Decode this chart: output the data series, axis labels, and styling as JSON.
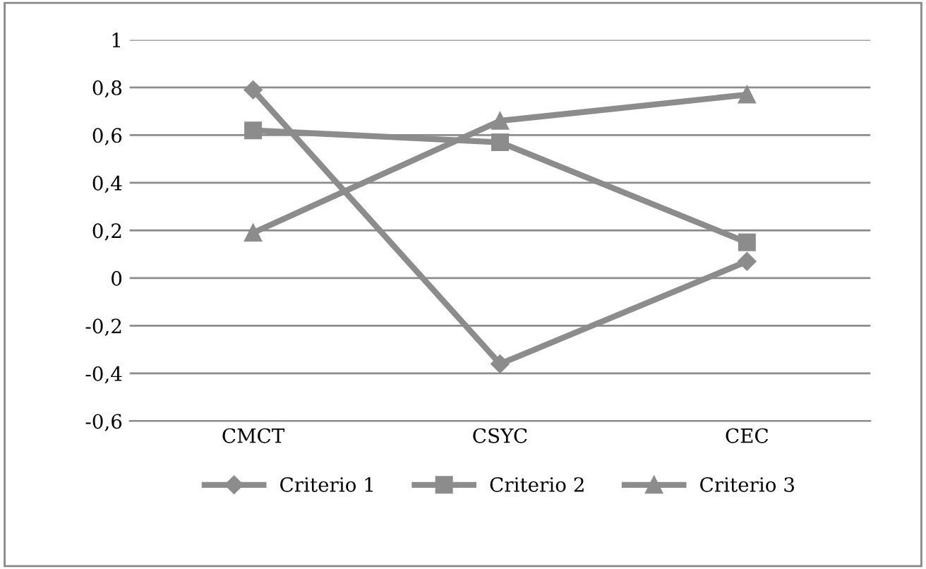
{
  "chart_data": {
    "type": "line",
    "categories": [
      "CMCT",
      "CSYC",
      "CEC"
    ],
    "series": [
      {
        "name": "Criterio 1",
        "color": "#8c8c8c",
        "marker": "diamond",
        "values": [
          0.79,
          -0.36,
          0.07
        ]
      },
      {
        "name": "Criterio 2",
        "color": "#8c8c8c",
        "marker": "square",
        "values": [
          0.62,
          0.57,
          0.15
        ]
      },
      {
        "name": "Criterio 3",
        "color": "#8c8c8c",
        "marker": "triangle",
        "values": [
          0.19,
          0.66,
          0.77
        ]
      }
    ],
    "ylim": [
      -0.6,
      1
    ],
    "yticks": [
      {
        "value": -0.6,
        "label": "-0,6"
      },
      {
        "value": -0.4,
        "label": "-0,4"
      },
      {
        "value": -0.2,
        "label": "-0,2"
      },
      0,
      {
        "value": 0.2,
        "label": "0,2"
      },
      {
        "value": 0.4,
        "label": "0,4"
      },
      {
        "value": 0.6,
        "label": "0,6"
      },
      {
        "value": 0.8,
        "label": "0,8"
      },
      1
    ],
    "grid": "y",
    "legend": "bottom",
    "line_style": "solid"
  }
}
